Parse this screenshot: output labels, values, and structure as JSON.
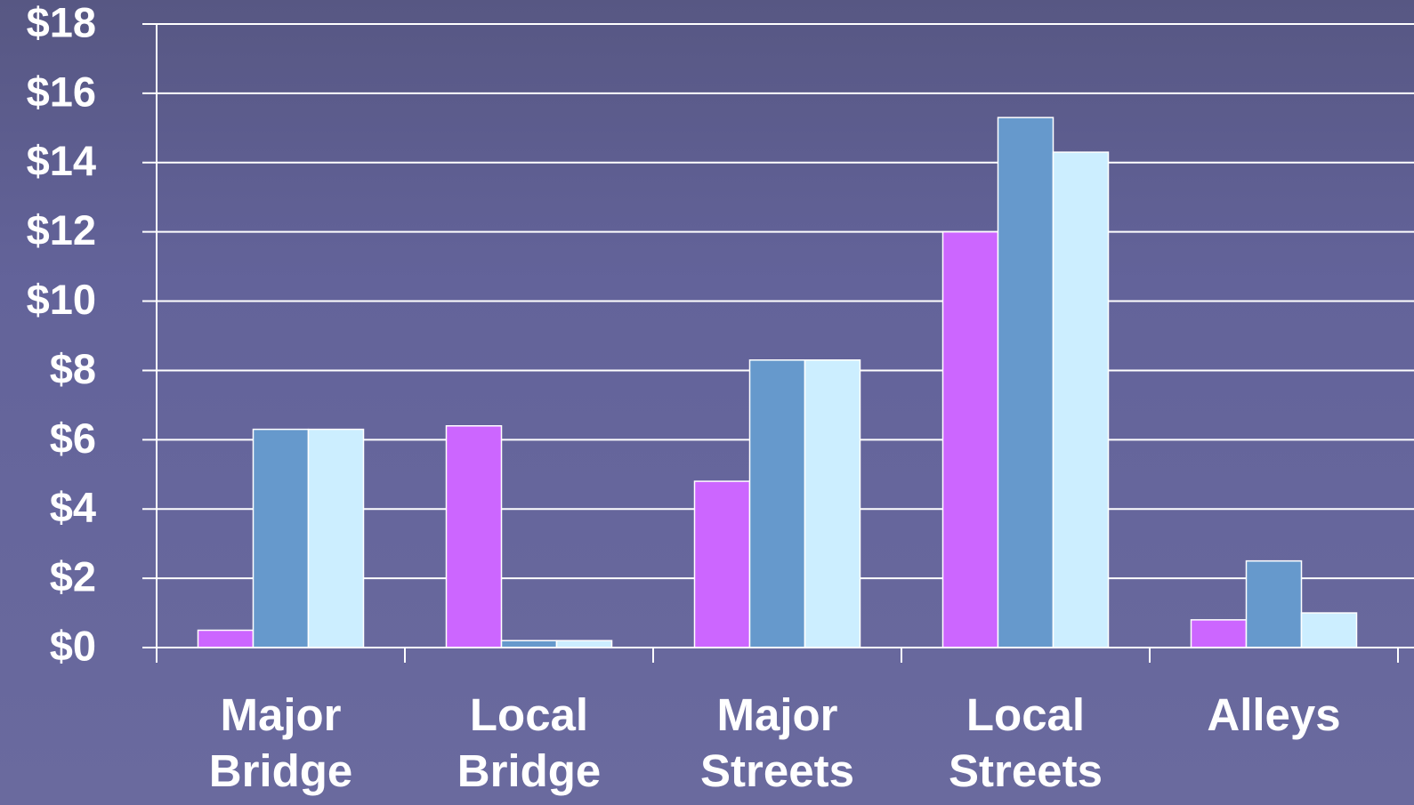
{
  "chart_data": {
    "type": "bar",
    "categories": [
      "Major Bridge",
      "Local Bridge",
      "Major Streets",
      "Local Streets",
      "Alleys"
    ],
    "series": [
      {
        "color": "#cc66ff",
        "values": [
          0.5,
          6.4,
          4.8,
          12.0,
          0.8
        ]
      },
      {
        "color": "#6699cc",
        "values": [
          6.3,
          0.2,
          8.3,
          15.3,
          2.5
        ]
      },
      {
        "color": "#cceeff",
        "values": [
          6.3,
          0.2,
          8.3,
          14.3,
          1.0
        ]
      }
    ],
    "ylim": [
      0,
      18
    ],
    "yticks": [
      {
        "value": 0,
        "label": "$0"
      },
      {
        "value": 2,
        "label": "$2"
      },
      {
        "value": 4,
        "label": "$4"
      },
      {
        "value": 6,
        "label": "$6"
      },
      {
        "value": 8,
        "label": "$8"
      },
      {
        "value": 10,
        "label": "$10"
      },
      {
        "value": 12,
        "label": "$12"
      },
      {
        "value": 14,
        "label": "$14"
      },
      {
        "value": 16,
        "label": "$16"
      },
      {
        "value": 18,
        "label": "$18"
      }
    ],
    "grid": true
  }
}
